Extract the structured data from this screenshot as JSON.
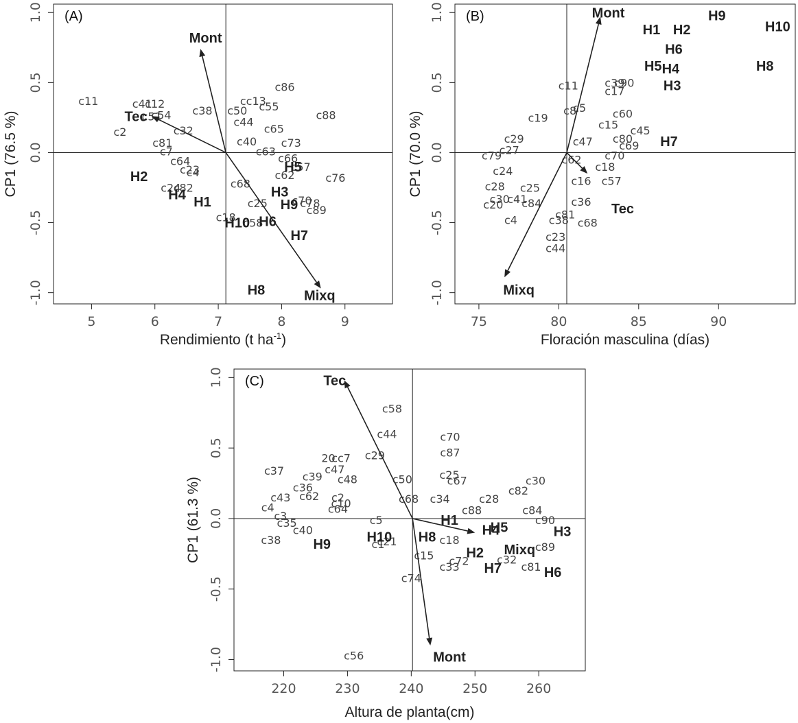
{
  "chart_data": [
    {
      "type": "scatter",
      "panel": "(A)",
      "xlabel_main": "Rendimiento (t ha",
      "xlabel_sup": "-1",
      "xlabel_end": ")",
      "ylabel": "CP1 (76.5 %)",
      "xlim": [
        4.4,
        9.75
      ],
      "ylim": [
        -1.08,
        1.06
      ],
      "xticks": [
        5,
        6,
        7,
        8,
        9
      ],
      "yticks": [
        -1.0,
        -0.5,
        0.0,
        0.5,
        1.0
      ],
      "ytick_labels": [
        "-1.0",
        "-0.5",
        "0.0",
        "0.5",
        "1.0"
      ],
      "ref_x": 7.12,
      "ref_y": 0.0,
      "arrow_origin": [
        7.12,
        0.0
      ],
      "variables": [
        {
          "label": "Mont",
          "end": [
            6.72,
            0.74
          ],
          "label_at": [
            6.8,
            0.82
          ]
        },
        {
          "label": "Tec",
          "end": [
            5.95,
            0.26
          ],
          "label_at": [
            5.7,
            0.26
          ]
        },
        {
          "label": "Mixq",
          "end": [
            8.62,
            -0.97
          ],
          "label_at": [
            8.6,
            -1.02
          ]
        }
      ],
      "hybrids": [
        {
          "label": "H1",
          "x": 6.75,
          "y": -0.35
        },
        {
          "label": "H2",
          "x": 5.75,
          "y": -0.17
        },
        {
          "label": "H3",
          "x": 7.97,
          "y": -0.28
        },
        {
          "label": "H4",
          "x": 6.35,
          "y": -0.3
        },
        {
          "label": "H5",
          "x": 8.18,
          "y": -0.1
        },
        {
          "label": "H6",
          "x": 7.78,
          "y": -0.49
        },
        {
          "label": "H7",
          "x": 8.28,
          "y": -0.59
        },
        {
          "label": "H8",
          "x": 7.6,
          "y": -0.98
        },
        {
          "label": "H9",
          "x": 8.12,
          "y": -0.37
        },
        {
          "label": "H10",
          "x": 7.3,
          "y": -0.5
        }
      ],
      "observations": [
        {
          "label": "c11",
          "x": 4.95,
          "y": 0.37
        },
        {
          "label": "c12",
          "x": 6.0,
          "y": 0.35
        },
        {
          "label": "c41",
          "x": 5.8,
          "y": 0.35
        },
        {
          "label": "c54",
          "x": 6.1,
          "y": 0.27
        },
        {
          "label": "c51",
          "x": 5.95,
          "y": 0.26
        },
        {
          "label": "c2",
          "x": 5.45,
          "y": 0.15
        },
        {
          "label": "c81",
          "x": 6.12,
          "y": 0.07
        },
        {
          "label": "c7",
          "x": 6.18,
          "y": 0.01
        },
        {
          "label": "c64",
          "x": 6.4,
          "y": -0.06
        },
        {
          "label": "c23",
          "x": 6.55,
          "y": -0.12
        },
        {
          "label": "c4",
          "x": 6.6,
          "y": -0.14
        },
        {
          "label": "c82",
          "x": 6.45,
          "y": -0.25
        },
        {
          "label": "c24",
          "x": 6.25,
          "y": -0.25
        },
        {
          "label": "c86",
          "x": 8.05,
          "y": 0.47
        },
        {
          "label": "cc13",
          "x": 7.55,
          "y": 0.37
        },
        {
          "label": "c55",
          "x": 7.8,
          "y": 0.33
        },
        {
          "label": "c88",
          "x": 8.7,
          "y": 0.27
        },
        {
          "label": "c65",
          "x": 7.88,
          "y": 0.17
        },
        {
          "label": "c73",
          "x": 8.15,
          "y": 0.07
        },
        {
          "label": "c63",
          "x": 7.75,
          "y": 0.01
        },
        {
          "label": "c66",
          "x": 8.1,
          "y": -0.04
        },
        {
          "label": "c76",
          "x": 8.85,
          "y": -0.18
        },
        {
          "label": "c70",
          "x": 8.32,
          "y": -0.34
        },
        {
          "label": "c78",
          "x": 8.45,
          "y": -0.36
        },
        {
          "label": "c89",
          "x": 8.55,
          "y": -0.41
        },
        {
          "label": "c25",
          "x": 7.62,
          "y": -0.36
        },
        {
          "label": "c18",
          "x": 7.12,
          "y": -0.46
        },
        {
          "label": "c68",
          "x": 7.35,
          "y": -0.22
        },
        {
          "label": "c58",
          "x": 7.55,
          "y": -0.5
        },
        {
          "label": "c44",
          "x": 7.4,
          "y": 0.22
        },
        {
          "label": "c40",
          "x": 7.45,
          "y": 0.08
        },
        {
          "label": "c38",
          "x": 6.75,
          "y": 0.3
        },
        {
          "label": "c32",
          "x": 6.45,
          "y": 0.16
        },
        {
          "label": "c50",
          "x": 7.3,
          "y": 0.3
        },
        {
          "label": "c62",
          "x": 8.05,
          "y": -0.16
        },
        {
          "label": "c57",
          "x": 8.3,
          "y": -0.1
        }
      ]
    },
    {
      "type": "scatter",
      "panel": "(B)",
      "xlabel": "Floración masculina (días)",
      "ylabel": "CP1 (70.0 %)",
      "xlim": [
        73.5,
        94.8
      ],
      "ylim": [
        -1.08,
        1.06
      ],
      "xticks": [
        75,
        80,
        85,
        90
      ],
      "yticks": [
        -1.0,
        -0.5,
        0.0,
        0.5,
        1.0
      ],
      "ytick_labels": [
        "-1.0",
        "-0.5",
        "0.0",
        "0.5",
        "1.0"
      ],
      "ref_x": 80.5,
      "ref_y": 0.0,
      "arrow_origin": [
        80.5,
        0.0
      ],
      "variables": [
        {
          "label": "Mont",
          "end": [
            82.6,
            0.97
          ],
          "label_at": [
            83.1,
            1.0
          ]
        },
        {
          "label": "Tec",
          "end": [
            81.8,
            -0.15
          ],
          "label_at": [
            84.0,
            -0.4
          ]
        },
        {
          "label": "Mixq",
          "end": [
            76.6,
            -0.89
          ],
          "label_at": [
            77.5,
            -0.98
          ]
        }
      ],
      "hybrids": [
        {
          "label": "H1",
          "x": 85.8,
          "y": 0.88
        },
        {
          "label": "H2",
          "x": 87.7,
          "y": 0.88
        },
        {
          "label": "H3",
          "x": 87.1,
          "y": 0.48
        },
        {
          "label": "H4",
          "x": 87.0,
          "y": 0.6
        },
        {
          "label": "H5",
          "x": 85.9,
          "y": 0.62
        },
        {
          "label": "H6",
          "x": 87.2,
          "y": 0.74
        },
        {
          "label": "H7",
          "x": 86.9,
          "y": 0.08
        },
        {
          "label": "H8",
          "x": 92.9,
          "y": 0.62
        },
        {
          "label": "H9",
          "x": 89.9,
          "y": 0.98
        },
        {
          "label": "H10",
          "x": 93.7,
          "y": 0.9
        }
      ],
      "observations": [
        {
          "label": "c11",
          "x": 80.6,
          "y": 0.48
        },
        {
          "label": "c19",
          "x": 78.7,
          "y": 0.25
        },
        {
          "label": "c79",
          "x": 75.8,
          "y": -0.02
        },
        {
          "label": "c39",
          "x": 83.5,
          "y": 0.5
        },
        {
          "label": "c90",
          "x": 84.1,
          "y": 0.5
        },
        {
          "label": "c17",
          "x": 83.5,
          "y": 0.44
        },
        {
          "label": "c60",
          "x": 84.0,
          "y": 0.28
        },
        {
          "label": "c15",
          "x": 83.1,
          "y": 0.2
        },
        {
          "label": "c45",
          "x": 85.1,
          "y": 0.16
        },
        {
          "label": "c80",
          "x": 84.0,
          "y": 0.1
        },
        {
          "label": "c69",
          "x": 84.4,
          "y": 0.05
        },
        {
          "label": "c70",
          "x": 83.5,
          "y": -0.02
        },
        {
          "label": "c18",
          "x": 82.9,
          "y": -0.1
        },
        {
          "label": "c57",
          "x": 83.3,
          "y": -0.2
        },
        {
          "label": "c16",
          "x": 81.4,
          "y": -0.2
        },
        {
          "label": "c36",
          "x": 81.4,
          "y": -0.35
        },
        {
          "label": "c68",
          "x": 81.8,
          "y": -0.5
        },
        {
          "label": "c81",
          "x": 80.4,
          "y": -0.44
        },
        {
          "label": "c38",
          "x": 80.0,
          "y": -0.48
        },
        {
          "label": "c23",
          "x": 79.8,
          "y": -0.6
        },
        {
          "label": "c44",
          "x": 79.8,
          "y": -0.68
        },
        {
          "label": "c4",
          "x": 77.0,
          "y": -0.48
        },
        {
          "label": "c20",
          "x": 75.9,
          "y": -0.37
        },
        {
          "label": "c30",
          "x": 76.3,
          "y": -0.33
        },
        {
          "label": "c28",
          "x": 76.0,
          "y": -0.24
        },
        {
          "label": "c24",
          "x": 76.5,
          "y": -0.13
        },
        {
          "label": "c25",
          "x": 78.2,
          "y": -0.25
        },
        {
          "label": "c41",
          "x": 77.4,
          "y": -0.33
        },
        {
          "label": "c84",
          "x": 78.3,
          "y": -0.36
        },
        {
          "label": "c8",
          "x": 80.7,
          "y": 0.3
        },
        {
          "label": "c5",
          "x": 81.3,
          "y": 0.32
        },
        {
          "label": "c47",
          "x": 81.5,
          "y": 0.08
        },
        {
          "label": "c29",
          "x": 77.2,
          "y": 0.1
        },
        {
          "label": "c27",
          "x": 76.9,
          "y": 0.02
        },
        {
          "label": "c62",
          "x": 80.8,
          "y": -0.05
        }
      ]
    },
    {
      "type": "scatter",
      "panel": "(C)",
      "xlabel": "Altura de planta(cm)",
      "ylabel": "CP1 (61.3 %)",
      "xlim": [
        212.2,
        267.3
      ],
      "ylim": [
        -1.08,
        1.06
      ],
      "xticks": [
        220,
        230,
        240,
        250,
        260
      ],
      "yticks": [
        -1.0,
        -0.5,
        0.0,
        0.5,
        1.0
      ],
      "ytick_labels": [
        "-1.0",
        "-0.5",
        "0.0",
        "0.5",
        "1.0"
      ],
      "ref_x": 240.2,
      "ref_y": 0.0,
      "arrow_origin": [
        240.2,
        0.0
      ],
      "variables": [
        {
          "label": "Tec",
          "end": [
            229.5,
            0.98
          ],
          "label_at": [
            228.0,
            0.98
          ]
        },
        {
          "label": "Mont",
          "end": [
            243.0,
            -0.9
          ],
          "label_at": [
            246.0,
            -0.98
          ]
        },
        {
          "label": "Mixq",
          "end": [
            250.0,
            -0.1
          ],
          "label_at": [
            257.0,
            -0.22
          ]
        }
      ],
      "hybrids": [
        {
          "label": "H1",
          "x": 246.0,
          "y": -0.01
        },
        {
          "label": "H2",
          "x": 250.0,
          "y": -0.24
        },
        {
          "label": "H3",
          "x": 263.7,
          "y": -0.09
        },
        {
          "label": "H4",
          "x": 252.5,
          "y": -0.08
        },
        {
          "label": "H5",
          "x": 253.8,
          "y": -0.06
        },
        {
          "label": "H6",
          "x": 262.2,
          "y": -0.38
        },
        {
          "label": "H7",
          "x": 252.8,
          "y": -0.35
        },
        {
          "label": "H8",
          "x": 242.5,
          "y": -0.13
        },
        {
          "label": "H9",
          "x": 226.0,
          "y": -0.18
        },
        {
          "label": "H10",
          "x": 235.0,
          "y": -0.13
        }
      ],
      "observations": [
        {
          "label": "c58",
          "x": 237.0,
          "y": 0.78
        },
        {
          "label": "c44",
          "x": 236.2,
          "y": 0.6
        },
        {
          "label": "c70",
          "x": 246.1,
          "y": 0.58
        },
        {
          "label": "c87",
          "x": 246.1,
          "y": 0.47
        },
        {
          "label": "c29",
          "x": 234.3,
          "y": 0.45
        },
        {
          "label": "20",
          "x": 227.0,
          "y": 0.43
        },
        {
          "label": "cc7",
          "x": 229.0,
          "y": 0.43
        },
        {
          "label": "c47",
          "x": 228.0,
          "y": 0.35
        },
        {
          "label": "c37",
          "x": 218.5,
          "y": 0.34
        },
        {
          "label": "c39",
          "x": 224.5,
          "y": 0.3
        },
        {
          "label": "c48",
          "x": 230.0,
          "y": 0.28
        },
        {
          "label": "c36",
          "x": 223.0,
          "y": 0.22
        },
        {
          "label": "c43",
          "x": 219.5,
          "y": 0.15
        },
        {
          "label": "c62",
          "x": 224.0,
          "y": 0.16
        },
        {
          "label": "c2",
          "x": 228.5,
          "y": 0.15
        },
        {
          "label": "c10",
          "x": 229.0,
          "y": 0.11
        },
        {
          "label": "c64",
          "x": 228.5,
          "y": 0.07
        },
        {
          "label": "c4",
          "x": 217.5,
          "y": 0.08
        },
        {
          "label": "c3",
          "x": 219.5,
          "y": 0.02
        },
        {
          "label": "c35",
          "x": 220.5,
          "y": -0.03
        },
        {
          "label": "c40",
          "x": 223.0,
          "y": -0.08
        },
        {
          "label": "c38",
          "x": 218.0,
          "y": -0.15
        },
        {
          "label": "c50",
          "x": 238.6,
          "y": 0.28
        },
        {
          "label": "c68",
          "x": 239.6,
          "y": 0.14
        },
        {
          "label": "c25",
          "x": 246.0,
          "y": 0.31
        },
        {
          "label": "c67",
          "x": 247.2,
          "y": 0.27
        },
        {
          "label": "c34",
          "x": 244.5,
          "y": 0.14
        },
        {
          "label": "c28",
          "x": 252.2,
          "y": 0.14
        },
        {
          "label": "c82",
          "x": 256.8,
          "y": 0.2
        },
        {
          "label": "c30",
          "x": 259.5,
          "y": 0.27
        },
        {
          "label": "c84",
          "x": 259.0,
          "y": 0.06
        },
        {
          "label": "c90",
          "x": 261.0,
          "y": -0.01
        },
        {
          "label": "c89",
          "x": 261.0,
          "y": -0.2
        },
        {
          "label": "c81",
          "x": 258.8,
          "y": -0.34
        },
        {
          "label": "c32",
          "x": 255.0,
          "y": -0.29
        },
        {
          "label": "c33",
          "x": 246.0,
          "y": -0.34
        },
        {
          "label": "c72",
          "x": 247.5,
          "y": -0.3
        },
        {
          "label": "c74",
          "x": 240.0,
          "y": -0.42
        },
        {
          "label": "c15",
          "x": 242.0,
          "y": -0.26
        },
        {
          "label": "c56",
          "x": 231.0,
          "y": -0.97
        },
        {
          "label": "c1",
          "x": 234.8,
          "y": -0.18
        },
        {
          "label": "c5",
          "x": 234.5,
          "y": -0.01
        },
        {
          "label": "c88",
          "x": 249.5,
          "y": 0.06
        },
        {
          "label": "c18",
          "x": 246.0,
          "y": -0.15
        },
        {
          "label": "c21",
          "x": 236.2,
          "y": -0.16
        }
      ]
    }
  ]
}
